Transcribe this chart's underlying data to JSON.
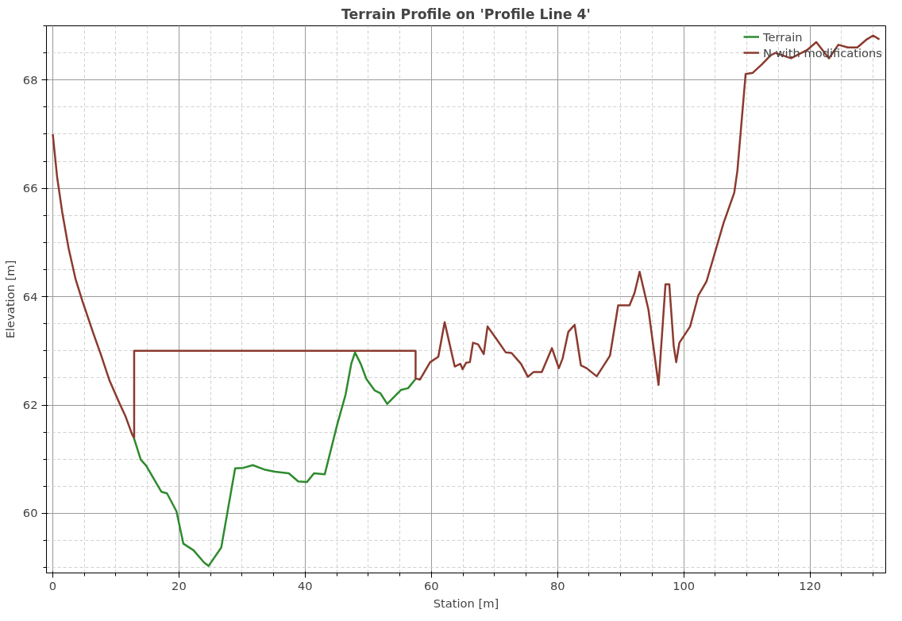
{
  "chart_data": {
    "type": "line",
    "title": "Terrain Profile on 'Profile Line 4'",
    "xlabel": "Station [m]",
    "ylabel": "Elevation [m]",
    "xlim": [
      -1,
      132
    ],
    "ylim": [
      58.9,
      69
    ],
    "xticks": [
      0,
      20,
      40,
      60,
      80,
      100,
      120
    ],
    "yticks": [
      60,
      62,
      64,
      66,
      68
    ],
    "grid": true,
    "legend": "top right",
    "line_style": "solid",
    "marker": "none",
    "series": [
      {
        "name": "Terrain",
        "color": "#2e8b2e",
        "x": [
          12.7,
          13.95,
          14.8,
          17.2,
          18.1,
          19.6,
          20.7,
          22.3,
          24.0,
          24.7,
          26.7,
          28.9,
          30.2,
          31.7,
          33.5,
          35.2,
          37.4,
          38.9,
          40.3,
          41.4,
          43.1,
          45.1,
          46.4,
          47.3,
          47.9,
          48.8,
          49.7,
          51.0,
          51.9,
          53.0,
          55.2,
          56.3,
          57.5
        ],
        "values": [
          61.45,
          60.99,
          60.88,
          60.4,
          60.37,
          60.04,
          59.44,
          59.32,
          59.09,
          59.03,
          59.37,
          60.83,
          60.84,
          60.89,
          60.81,
          60.77,
          60.74,
          60.59,
          60.58,
          60.74,
          60.72,
          61.65,
          62.19,
          62.76,
          62.97,
          62.76,
          62.48,
          62.27,
          62.22,
          62.02,
          62.28,
          62.31,
          62.48
        ]
      },
      {
        "name": "N with modifications",
        "color": "#8b3a2f",
        "x": [
          0,
          0.7,
          1.5,
          2.5,
          3.6,
          4.7,
          6.5,
          7.6,
          9,
          10.5,
          11.5,
          12.6,
          12.9,
          12.9,
          57.5,
          57.5,
          58.2,
          59.8,
          61.1,
          62.1,
          63.7,
          64.6,
          64.95,
          65.5,
          66.1,
          66.6,
          67.4,
          68.3,
          68.9,
          70.3,
          71.8,
          72.7,
          74.2,
          75.3,
          76.2,
          77.5,
          79.1,
          80.2,
          80.8,
          81.7,
          82.7,
          83.7,
          84.6,
          86.2,
          88.3,
          89.6,
          91.4,
          92.2,
          93.0,
          94.4,
          96.0,
          97.1,
          97.7,
          98.4,
          98.8,
          99.3,
          101.0,
          102.3,
          103.6,
          106.3,
          108.0,
          108.5,
          109.8,
          110.9,
          112.4,
          113.7,
          114.5,
          117,
          119.5,
          121,
          123,
          124.5,
          126,
          127.5,
          129,
          130,
          131
        ],
        "values": [
          67.0,
          66.2,
          65.56,
          64.9,
          64.33,
          63.92,
          63.3,
          62.94,
          62.45,
          62.05,
          61.8,
          61.45,
          61.4,
          63.0,
          63.0,
          62.49,
          62.47,
          62.79,
          62.89,
          63.53,
          62.71,
          62.76,
          62.66,
          62.78,
          62.79,
          63.15,
          63.12,
          62.94,
          63.45,
          63.22,
          62.97,
          62.96,
          62.76,
          62.52,
          62.61,
          62.61,
          63.05,
          62.68,
          62.86,
          63.35,
          63.48,
          62.73,
          62.68,
          62.53,
          62.91,
          63.84,
          63.84,
          64.07,
          64.46,
          63.76,
          62.37,
          64.23,
          64.23,
          63.09,
          62.79,
          63.15,
          63.45,
          64.02,
          64.28,
          65.36,
          65.92,
          66.33,
          68.11,
          68.13,
          68.29,
          68.45,
          68.5,
          68.4,
          68.55,
          68.7,
          68.4,
          68.65,
          68.6,
          68.6,
          68.75,
          68.82,
          68.75
        ]
      }
    ]
  }
}
